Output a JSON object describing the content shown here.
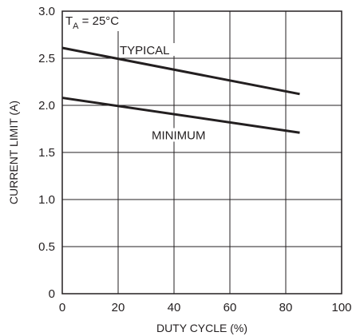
{
  "chart_data": {
    "type": "line",
    "xlabel": "DUTY CYCLE (%)",
    "ylabel": "CURRENT LIMIT (A)",
    "xlim": [
      0,
      100
    ],
    "ylim": [
      0,
      3.0
    ],
    "grid": true,
    "x_ticks": [
      "0",
      "20",
      "40",
      "60",
      "80",
      "100"
    ],
    "y_ticks": [
      "0",
      "0.5",
      "1.0",
      "1.5",
      "2.0",
      "2.5",
      "3.0"
    ],
    "annotation": {
      "prefix": "T",
      "subscript": "A",
      "suffix": " = 25°C"
    },
    "series": [
      {
        "name": "TYPICAL",
        "x": [
          0,
          85
        ],
        "y": [
          2.61,
          2.12
        ]
      },
      {
        "name": "MINIMUM",
        "x": [
          0,
          85
        ],
        "y": [
          2.08,
          1.71
        ]
      }
    ]
  }
}
